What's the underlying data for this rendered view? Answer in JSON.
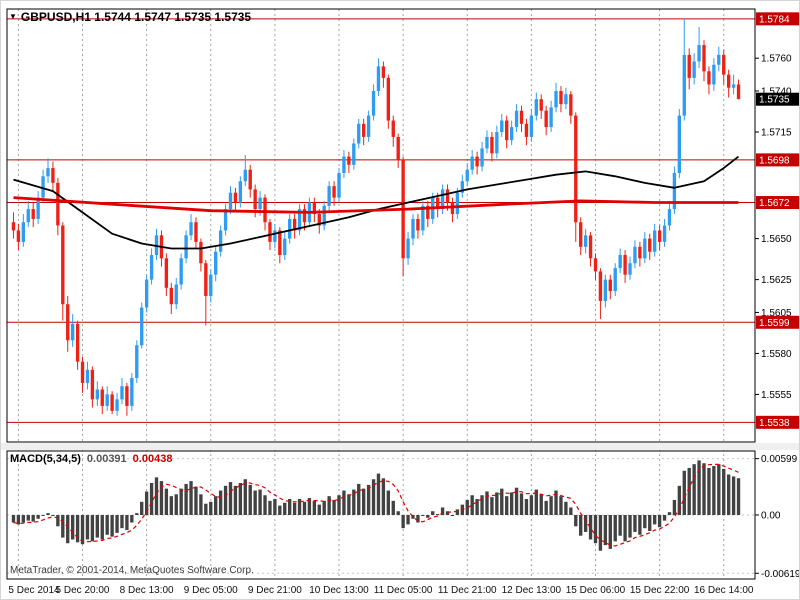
{
  "header": {
    "menu_icon": "▼",
    "symbol": "GBPUSD,H1",
    "ohlc": "1.5744 1.5747 1.5735 1.5735"
  },
  "footer": {
    "credit": "MetaTrader, © 2001-2014, MetaQuotes Software Corp."
  },
  "colors": {
    "bull": "#2f9cf2",
    "bear": "#ee2116",
    "level": "#c40000",
    "ma_fast": "#000000",
    "ma_slow": "#e00000",
    "hist": "#424242",
    "signal": "#e00000",
    "grid": "#a3a3a3",
    "current_box": "#000000"
  },
  "chart_data": {
    "type": "candlestick",
    "symbol": "GBPUSD",
    "timeframe": "H1",
    "title": "GBPUSD,H1 1.5744 1.5747 1.5735 1.5735",
    "current_bar": {
      "open": 1.5744,
      "high": 1.5747,
      "low": 1.5735,
      "close": 1.5735
    },
    "price_axis": {
      "range": [
        1.5526,
        1.579
      ],
      "ticks": [
        "1.5760",
        "1.5740",
        "1.5715",
        "1.5650",
        "1.5625",
        "1.5605",
        "1.5580",
        "1.5555"
      ],
      "levels": [
        "1.5784",
        "1.5698",
        "1.5672",
        "1.5599",
        "1.5538"
      ],
      "current": "1.5735"
    },
    "time_axis": {
      "labels": [
        "5 Dec 2014",
        "5 Dec 20:00",
        "8 Dec 13:00",
        "9 Dec 05:00",
        "9 Dec 21:00",
        "10 Dec 13:00",
        "11 Dec 05:00",
        "11 Dec 21:00",
        "12 Dec 13:00",
        "15 Dec 06:00",
        "15 Dec 22:00",
        "16 Dec 14:00"
      ],
      "bar_indices": [
        1,
        14,
        27,
        40,
        53,
        66,
        79,
        92,
        105,
        118,
        131,
        144
      ]
    },
    "candles": [
      [
        1.566,
        1.5666,
        1.565,
        1.5655
      ],
      [
        1.5655,
        1.5659,
        1.5643,
        1.5648
      ],
      [
        1.5648,
        1.5665,
        1.5645,
        1.566
      ],
      [
        1.566,
        1.5673,
        1.5657,
        1.5668
      ],
      [
        1.5668,
        1.5672,
        1.5657,
        1.5662
      ],
      [
        1.5662,
        1.5679,
        1.5659,
        1.5675
      ],
      [
        1.5675,
        1.5692,
        1.5672,
        1.5688
      ],
      [
        1.5688,
        1.5699,
        1.5684,
        1.5693
      ],
      [
        1.5693,
        1.5697,
        1.5679,
        1.5684
      ],
      [
        1.5684,
        1.5687,
        1.5652,
        1.5658
      ],
      [
        1.5658,
        1.566,
        1.56,
        1.561
      ],
      [
        1.561,
        1.5615,
        1.5581,
        1.5588
      ],
      [
        1.5588,
        1.5604,
        1.5584,
        1.5598
      ],
      [
        1.5598,
        1.56,
        1.557,
        1.5575
      ],
      [
        1.5575,
        1.5578,
        1.5556,
        1.5562
      ],
      [
        1.5562,
        1.5575,
        1.5558,
        1.557
      ],
      [
        1.557,
        1.5572,
        1.5547,
        1.5552
      ],
      [
        1.5552,
        1.5563,
        1.5548,
        1.5558
      ],
      [
        1.5558,
        1.556,
        1.5543,
        1.5548
      ],
      [
        1.5548,
        1.556,
        1.5545,
        1.5555
      ],
      [
        1.5555,
        1.5557,
        1.5543,
        1.5545
      ],
      [
        1.5545,
        1.5556,
        1.5542,
        1.5552
      ],
      [
        1.5552,
        1.5565,
        1.5549,
        1.556
      ],
      [
        1.556,
        1.5562,
        1.5542,
        1.5548
      ],
      [
        1.5548,
        1.5568,
        1.5545,
        1.5565
      ],
      [
        1.5565,
        1.5588,
        1.5562,
        1.5585
      ],
      [
        1.5585,
        1.5611,
        1.5583,
        1.5608
      ],
      [
        1.5608,
        1.5628,
        1.5605,
        1.5625
      ],
      [
        1.5625,
        1.5644,
        1.5622,
        1.564
      ],
      [
        1.564,
        1.5656,
        1.5637,
        1.5652
      ],
      [
        1.5652,
        1.5655,
        1.5633,
        1.5638
      ],
      [
        1.5638,
        1.5641,
        1.5615,
        1.562
      ],
      [
        1.562,
        1.5623,
        1.5604,
        1.561
      ],
      [
        1.561,
        1.5626,
        1.5607,
        1.5622
      ],
      [
        1.5622,
        1.5641,
        1.5619,
        1.5638
      ],
      [
        1.5638,
        1.5655,
        1.5635,
        1.5652
      ],
      [
        1.5652,
        1.5665,
        1.5649,
        1.566
      ],
      [
        1.566,
        1.5663,
        1.5644,
        1.5648
      ],
      [
        1.5648,
        1.565,
        1.563,
        1.5635
      ],
      [
        1.5635,
        1.5637,
        1.5597,
        1.5615
      ],
      [
        1.5615,
        1.5631,
        1.5611,
        1.5628
      ],
      [
        1.5628,
        1.5645,
        1.5624,
        1.5642
      ],
      [
        1.5642,
        1.5658,
        1.5639,
        1.5655
      ],
      [
        1.5655,
        1.5671,
        1.5652,
        1.5668
      ],
      [
        1.5668,
        1.5682,
        1.5665,
        1.5678
      ],
      [
        1.5678,
        1.5681,
        1.5667,
        1.5672
      ],
      [
        1.5672,
        1.5688,
        1.5669,
        1.5685
      ],
      [
        1.5685,
        1.5701,
        1.5682,
        1.5692
      ],
      [
        1.5692,
        1.5695,
        1.5675,
        1.568
      ],
      [
        1.568,
        1.5683,
        1.5663,
        1.5668
      ],
      [
        1.5668,
        1.5679,
        1.5664,
        1.5675
      ],
      [
        1.5675,
        1.5677,
        1.5655,
        1.566
      ],
      [
        1.566,
        1.5662,
        1.5643,
        1.5648
      ],
      [
        1.5648,
        1.5659,
        1.5644,
        1.5655
      ],
      [
        1.5655,
        1.5657,
        1.5635,
        1.564
      ],
      [
        1.564,
        1.5654,
        1.5637,
        1.565
      ],
      [
        1.565,
        1.5665,
        1.5647,
        1.5662
      ],
      [
        1.5662,
        1.5665,
        1.565,
        1.5655
      ],
      [
        1.5655,
        1.5671,
        1.5652,
        1.5668
      ],
      [
        1.5668,
        1.5671,
        1.5655,
        1.566
      ],
      [
        1.566,
        1.5675,
        1.5657,
        1.5672
      ],
      [
        1.5672,
        1.5675,
        1.566,
        1.5665
      ],
      [
        1.5665,
        1.5668,
        1.5653,
        1.5658
      ],
      [
        1.5658,
        1.5673,
        1.5655,
        1.567
      ],
      [
        1.567,
        1.5685,
        1.5667,
        1.5682
      ],
      [
        1.5682,
        1.5685,
        1.567,
        1.5675
      ],
      [
        1.5675,
        1.5693,
        1.5672,
        1.569
      ],
      [
        1.569,
        1.5704,
        1.5687,
        1.57
      ],
      [
        1.57,
        1.5703,
        1.569,
        1.5695
      ],
      [
        1.5695,
        1.5711,
        1.5692,
        1.5708
      ],
      [
        1.5708,
        1.5723,
        1.5705,
        1.572
      ],
      [
        1.572,
        1.5723,
        1.5707,
        1.5712
      ],
      [
        1.5712,
        1.5728,
        1.5709,
        1.5725
      ],
      [
        1.5725,
        1.5744,
        1.5722,
        1.574
      ],
      [
        1.574,
        1.576,
        1.5737,
        1.5755
      ],
      [
        1.5755,
        1.5758,
        1.5742,
        1.5748
      ],
      [
        1.5748,
        1.575,
        1.5717,
        1.5722
      ],
      [
        1.5722,
        1.5725,
        1.5706,
        1.5712
      ],
      [
        1.5712,
        1.5714,
        1.5693,
        1.5698
      ],
      [
        1.5698,
        1.57,
        1.5627,
        1.5638
      ],
      [
        1.5638,
        1.5654,
        1.5634,
        1.565
      ],
      [
        1.565,
        1.5665,
        1.5646,
        1.5662
      ],
      [
        1.5662,
        1.5665,
        1.565,
        1.5655
      ],
      [
        1.5655,
        1.5673,
        1.5652,
        1.567
      ],
      [
        1.567,
        1.5673,
        1.5657,
        1.5662
      ],
      [
        1.5662,
        1.5678,
        1.5659,
        1.5675
      ],
      [
        1.5675,
        1.5678,
        1.5663,
        1.5668
      ],
      [
        1.5668,
        1.5683,
        1.5665,
        1.568
      ],
      [
        1.568,
        1.5683,
        1.5667,
        1.5672
      ],
      [
        1.5672,
        1.5675,
        1.566,
        1.5665
      ],
      [
        1.5665,
        1.5681,
        1.5662,
        1.5678
      ],
      [
        1.5678,
        1.5689,
        1.5675,
        1.5685
      ],
      [
        1.5685,
        1.5696,
        1.5682,
        1.5692
      ],
      [
        1.5692,
        1.5704,
        1.5689,
        1.57
      ],
      [
        1.57,
        1.5703,
        1.5689,
        1.5694
      ],
      [
        1.5694,
        1.5709,
        1.5691,
        1.5705
      ],
      [
        1.5705,
        1.5716,
        1.5702,
        1.5712
      ],
      [
        1.5712,
        1.5715,
        1.5697,
        1.5702
      ],
      [
        1.5702,
        1.5719,
        1.5699,
        1.5715
      ],
      [
        1.5715,
        1.5726,
        1.5712,
        1.5722
      ],
      [
        1.5722,
        1.5725,
        1.5705,
        1.571
      ],
      [
        1.571,
        1.5722,
        1.5707,
        1.5718
      ],
      [
        1.5718,
        1.5732,
        1.5715,
        1.5728
      ],
      [
        1.5728,
        1.5731,
        1.5715,
        1.572
      ],
      [
        1.572,
        1.5723,
        1.5707,
        1.5712
      ],
      [
        1.5712,
        1.5729,
        1.5709,
        1.5725
      ],
      [
        1.5725,
        1.5739,
        1.5722,
        1.5735
      ],
      [
        1.5735,
        1.5738,
        1.5723,
        1.5728
      ],
      [
        1.5728,
        1.5731,
        1.5713,
        1.5718
      ],
      [
        1.5718,
        1.5734,
        1.5715,
        1.573
      ],
      [
        1.573,
        1.5745,
        1.5727,
        1.574
      ],
      [
        1.574,
        1.5743,
        1.5727,
        1.5732
      ],
      [
        1.5732,
        1.5742,
        1.5729,
        1.5738
      ],
      [
        1.5738,
        1.574,
        1.572,
        1.5725
      ],
      [
        1.5725,
        1.5727,
        1.5648,
        1.566
      ],
      [
        1.566,
        1.5663,
        1.564,
        1.5645
      ],
      [
        1.5645,
        1.5656,
        1.5641,
        1.5652
      ],
      [
        1.5652,
        1.5654,
        1.5633,
        1.5638
      ],
      [
        1.5638,
        1.5641,
        1.5625,
        1.563
      ],
      [
        1.563,
        1.5632,
        1.5601,
        1.5612
      ],
      [
        1.5612,
        1.5628,
        1.5608,
        1.5625
      ],
      [
        1.5625,
        1.5628,
        1.5613,
        1.5618
      ],
      [
        1.5618,
        1.5635,
        1.5615,
        1.5632
      ],
      [
        1.5632,
        1.5644,
        1.5629,
        1.564
      ],
      [
        1.564,
        1.5643,
        1.5623,
        1.5628
      ],
      [
        1.5628,
        1.5639,
        1.5625,
        1.5635
      ],
      [
        1.5635,
        1.5649,
        1.5632,
        1.5645
      ],
      [
        1.5645,
        1.5648,
        1.5633,
        1.5638
      ],
      [
        1.5638,
        1.5654,
        1.5635,
        1.565
      ],
      [
        1.565,
        1.5653,
        1.5637,
        1.5642
      ],
      [
        1.5642,
        1.5659,
        1.5639,
        1.5655
      ],
      [
        1.5655,
        1.5658,
        1.5643,
        1.5648
      ],
      [
        1.5648,
        1.5662,
        1.5645,
        1.5658
      ],
      [
        1.5658,
        1.5672,
        1.5655,
        1.5668
      ],
      [
        1.5668,
        1.5694,
        1.5665,
        1.569
      ],
      [
        1.569,
        1.5729,
        1.5687,
        1.5725
      ],
      [
        1.5725,
        1.5784,
        1.5722,
        1.5762
      ],
      [
        1.5762,
        1.5766,
        1.5741,
        1.5748
      ],
      [
        1.5748,
        1.5763,
        1.5744,
        1.5758
      ],
      [
        1.5758,
        1.5779,
        1.5754,
        1.5768
      ],
      [
        1.5768,
        1.5771,
        1.5746,
        1.5752
      ],
      [
        1.5752,
        1.5755,
        1.5738,
        1.5744
      ],
      [
        1.5744,
        1.576,
        1.574,
        1.5756
      ],
      [
        1.5756,
        1.5767,
        1.5752,
        1.5762
      ],
      [
        1.5762,
        1.5765,
        1.5744,
        1.575
      ],
      [
        1.575,
        1.5753,
        1.5736,
        1.5742
      ],
      [
        1.5742,
        1.575,
        1.5738,
        1.5744
      ],
      [
        1.5744,
        1.5747,
        1.5735,
        1.5735
      ]
    ],
    "overlays": {
      "ma_black_points": [
        [
          0,
          1.5686
        ],
        [
          8,
          1.5679
        ],
        [
          14,
          1.5666
        ],
        [
          20,
          1.5653
        ],
        [
          26,
          1.5647
        ],
        [
          32,
          1.5644
        ],
        [
          38,
          1.5644
        ],
        [
          44,
          1.5647
        ],
        [
          50,
          1.5651
        ],
        [
          56,
          1.5655
        ],
        [
          62,
          1.5659
        ],
        [
          68,
          1.5663
        ],
        [
          74,
          1.5668
        ],
        [
          80,
          1.5672
        ],
        [
          86,
          1.5676
        ],
        [
          92,
          1.568
        ],
        [
          98,
          1.5683
        ],
        [
          104,
          1.5686
        ],
        [
          110,
          1.5689
        ],
        [
          116,
          1.5691
        ],
        [
          122,
          1.5688
        ],
        [
          128,
          1.5684
        ],
        [
          134,
          1.5681
        ],
        [
          140,
          1.5685
        ],
        [
          144,
          1.5693
        ],
        [
          147,
          1.57
        ]
      ],
      "ma_red_points": [
        [
          0,
          1.5675
        ],
        [
          20,
          1.5671
        ],
        [
          40,
          1.5667
        ],
        [
          60,
          1.5666
        ],
        [
          80,
          1.5668
        ],
        [
          100,
          1.5671
        ],
        [
          115,
          1.5673
        ],
        [
          130,
          1.5672
        ],
        [
          147,
          1.5672
        ]
      ]
    },
    "macd": {
      "label": "MACD(5,34,5)",
      "value_macd": "0.00391",
      "value_signal": "0.00438",
      "axis_ticks": [
        "0.00599",
        "0.00",
        "-0.00619"
      ],
      "range": [
        -0.0068,
        0.0068
      ],
      "values": [
        -0.0008,
        -0.001,
        -0.0008,
        -0.0006,
        -0.0007,
        -0.0004,
        -0.0001,
        0.0002,
        0.0,
        -0.0012,
        -0.0024,
        -0.003,
        -0.0026,
        -0.0029,
        -0.0031,
        -0.0026,
        -0.0028,
        -0.0024,
        -0.0026,
        -0.0021,
        -0.0023,
        -0.0019,
        -0.0014,
        -0.0016,
        -0.0008,
        0.0002,
        0.0014,
        0.0025,
        0.0034,
        0.004,
        0.0036,
        0.0028,
        0.002,
        0.0022,
        0.0028,
        0.0033,
        0.0036,
        0.003,
        0.0022,
        0.0012,
        0.0014,
        0.002,
        0.0026,
        0.0031,
        0.0035,
        0.0031,
        0.0034,
        0.0038,
        0.0032,
        0.0026,
        0.0027,
        0.0021,
        0.0015,
        0.0017,
        0.001,
        0.0013,
        0.0017,
        0.0013,
        0.0017,
        0.0014,
        0.0018,
        0.0015,
        0.0011,
        0.0015,
        0.002,
        0.0016,
        0.0021,
        0.0026,
        0.0022,
        0.0027,
        0.0033,
        0.0028,
        0.0032,
        0.0038,
        0.0044,
        0.0039,
        0.0026,
        0.0015,
        0.0004,
        -0.0014,
        -0.001,
        -0.0004,
        -0.0008,
        0.0,
        -0.0003,
        0.0004,
        0.0001,
        0.0008,
        0.0004,
        0.0,
        0.0006,
        0.0011,
        0.0016,
        0.0021,
        0.0017,
        0.0021,
        0.0025,
        0.0019,
        0.0024,
        0.0028,
        0.002,
        0.0024,
        0.0029,
        0.0023,
        0.0017,
        0.0021,
        0.0027,
        0.0022,
        0.0015,
        0.002,
        0.0026,
        0.002,
        0.0014,
        0.0008,
        -0.0012,
        -0.0022,
        -0.0018,
        -0.0026,
        -0.003,
        -0.0038,
        -0.0032,
        -0.0036,
        -0.0028,
        -0.0022,
        -0.0028,
        -0.0024,
        -0.0018,
        -0.0021,
        -0.0014,
        -0.0017,
        -0.001,
        -0.0013,
        -0.0006,
        0.0003,
        0.0016,
        0.0031,
        0.0047,
        0.005,
        0.0054,
        0.0058,
        0.0055,
        0.005,
        0.0052,
        0.0054,
        0.0049,
        0.0043,
        0.0041,
        0.00391
      ]
    }
  }
}
